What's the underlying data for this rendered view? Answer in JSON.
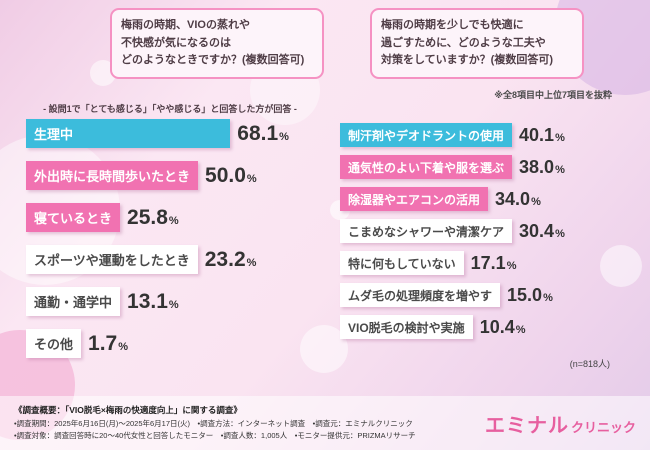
{
  "questions": {
    "left": {
      "lines": [
        "梅雨の時期、VIOの蒸れや",
        "不快感が気になるのは",
        "どのようなときですか？(複数回答可)"
      ]
    },
    "right": {
      "lines": [
        "梅雨の時期を少しでも快適に",
        "過ごすために、どのような工夫や",
        "対策をしていますか？(複数回答可)"
      ]
    }
  },
  "chart_data": [
    {
      "type": "bar",
      "orientation": "horizontal",
      "title": "梅雨の時期、VIOの蒸れや不快感が気になるのはどのようなときですか？(複数回答可)",
      "subtitle": "- 設問1で「とても感じる」「やや感じる」と回答した方が回答 -",
      "unit": "%",
      "categories": [
        "生理中",
        "外出時に長時間歩いたとき",
        "寝ているとき",
        "スポーツや運動をしたとき",
        "通勤・通学中",
        "その他"
      ],
      "values": [
        68.1,
        50.0,
        25.8,
        23.2,
        13.1,
        1.7
      ],
      "bar_styles": [
        "cyan",
        "pink",
        "pink",
        "white",
        "white",
        "white"
      ],
      "xlim": [
        0,
        100
      ]
    },
    {
      "type": "bar",
      "orientation": "horizontal",
      "title": "梅雨の時期を少しでも快適に過ごすために、どのような工夫や対策をしていますか？(複数回答可)",
      "note": "※全8項目中上位7項目を抜粋",
      "sample_label": "(n=818人)",
      "unit": "%",
      "categories": [
        "制汗剤やデオドラントの使用",
        "通気性のよい下着や服を選ぶ",
        "除湿器やエアコンの活用",
        "こまめなシャワーや清潔ケア",
        "特に何もしていない",
        "ムダ毛の処理頻度を増やす",
        "VIO脱毛の検討や実施"
      ],
      "values": [
        40.1,
        38.0,
        34.0,
        30.4,
        17.1,
        15.0,
        10.4
      ],
      "bar_styles": [
        "cyan",
        "pink",
        "pink",
        "white",
        "white",
        "white",
        "white"
      ],
      "xlim": [
        0,
        100
      ]
    }
  ],
  "footer": {
    "overview_title": "《調査概要：「VIO脱毛×梅雨の快適度向上」に関する調査》",
    "line1": "•調査期間：2025年6月16日(月)～2025年6月17日(火)　•調査方法：インターネット調査　•調査元：エミナルクリニック",
    "line2": "•調査対象：調査回答時に20～40代女性と回答したモニター　•調査人数：1,005人　•モニター提供元：PRIZMAリサーチ",
    "logo_main": "エミナル",
    "logo_sub": "クリニック"
  },
  "colors": {
    "bar_cyan": "#3cbcdc",
    "bar_pink": "#f172b1",
    "accent_border_pink": "#f592c3",
    "logo_pink": "#e75f9f"
  }
}
